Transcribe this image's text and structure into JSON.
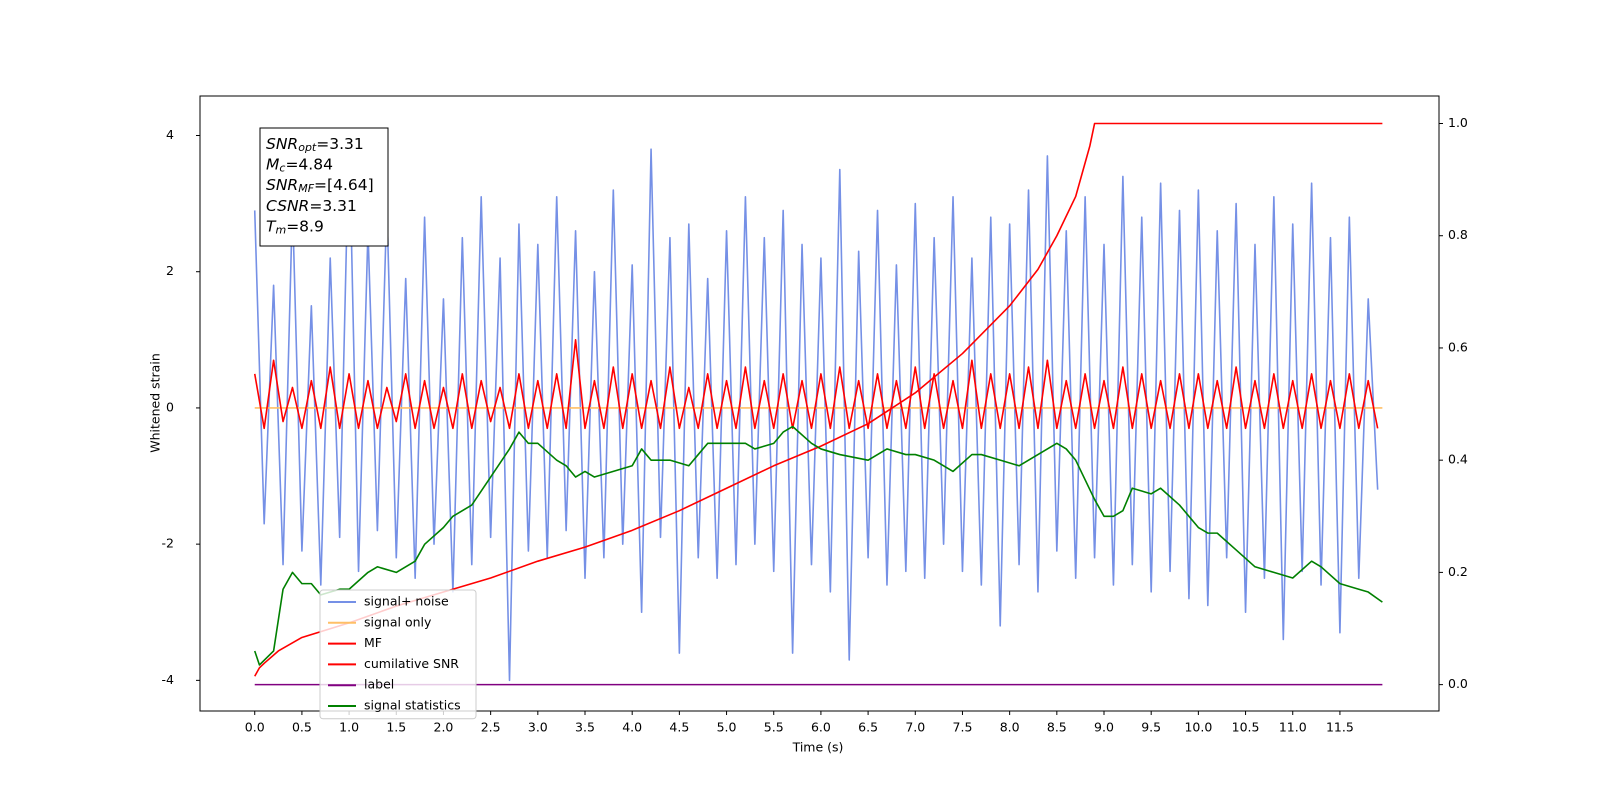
{
  "chart_data": {
    "type": "line",
    "xlabel": "Time (s)",
    "ylabel": "Whitened strain",
    "xlim": [
      -0.58,
      12.55
    ],
    "ylim": [
      -4.45,
      4.58
    ],
    "y2lim": [
      -0.047,
      1.049
    ],
    "xticks": [
      {
        "value": 0,
        "label": "0.0"
      },
      0.5,
      {
        "value": 1,
        "label": "1.0"
      },
      1.5,
      {
        "value": 2,
        "label": "2.0"
      },
      2.5,
      {
        "value": 3,
        "label": "3.0"
      },
      3.5,
      {
        "value": 4,
        "label": "4.0"
      },
      4.5,
      {
        "value": 5,
        "label": "5.0"
      },
      5.5,
      {
        "value": 6,
        "label": "6.0"
      },
      6.5,
      {
        "value": 7,
        "label": "7.0"
      },
      7.5,
      {
        "value": 8,
        "label": "8.0"
      },
      8.5,
      {
        "value": 9,
        "label": "9.0"
      },
      9.5,
      {
        "value": 10,
        "label": "10.0"
      },
      10.5,
      {
        "value": 11,
        "label": "11.0"
      },
      11.5
    ],
    "yticks": [
      -4,
      -2,
      0,
      2,
      4
    ],
    "y2ticks": [
      {
        "value": 0,
        "label": "0.0"
      },
      0.2,
      0.4,
      0.6,
      0.8,
      {
        "value": 1,
        "label": "1.0"
      }
    ],
    "x": [
      0,
      0.1,
      0.2,
      0.3,
      0.4,
      0.5,
      0.6,
      0.7,
      0.8,
      0.9,
      1.0,
      1.1,
      1.2,
      1.3,
      1.4,
      1.5,
      1.6,
      1.7,
      1.8,
      1.9,
      2.0,
      2.1,
      2.2,
      2.3,
      2.4,
      2.5,
      2.6,
      2.7,
      2.8,
      2.9,
      3.0,
      3.1,
      3.2,
      3.3,
      3.4,
      3.5,
      3.6,
      3.7,
      3.8,
      3.9,
      4.0,
      4.1,
      4.2,
      4.3,
      4.4,
      4.5,
      4.6,
      4.7,
      4.8,
      4.9,
      5.0,
      5.1,
      5.2,
      5.3,
      5.4,
      5.5,
      5.6,
      5.7,
      5.8,
      5.9,
      6.0,
      6.1,
      6.2,
      6.3,
      6.4,
      6.5,
      6.6,
      6.7,
      6.8,
      6.9,
      7.0,
      7.1,
      7.2,
      7.3,
      7.4,
      7.5,
      7.6,
      7.7,
      7.8,
      7.9,
      8.0,
      8.1,
      8.2,
      8.3,
      8.4,
      8.5,
      8.6,
      8.7,
      8.8,
      8.9,
      9.0,
      9.1,
      9.2,
      9.3,
      9.4,
      9.5,
      9.6,
      9.7,
      9.8,
      9.9,
      10.0,
      10.1,
      10.2,
      10.3,
      10.4,
      10.5,
      10.6,
      10.7,
      10.8,
      10.9,
      11.0,
      11.1,
      11.2,
      11.3,
      11.4,
      11.5,
      11.6,
      11.7,
      11.8,
      11.9
    ],
    "series": [
      {
        "name": "signal+ noise",
        "color": "#7590e6",
        "values": [
          2.9,
          -1.7,
          1.8,
          -2.3,
          3.0,
          -2.1,
          1.5,
          -2.6,
          2.2,
          -1.9,
          4.1,
          -2.4,
          2.6,
          -1.8,
          3.0,
          -2.2,
          1.9,
          -2.5,
          2.8,
          -2.0,
          1.6,
          -2.7,
          2.5,
          -2.3,
          3.1,
          -1.9,
          2.2,
          -4.0,
          2.7,
          -2.1,
          2.4,
          -2.2,
          3.1,
          -1.8,
          2.6,
          -2.5,
          2.0,
          -2.2,
          3.2,
          -2.0,
          2.1,
          -3.0,
          3.8,
          -1.9,
          2.5,
          -3.6,
          2.7,
          -2.2,
          1.9,
          -2.5,
          2.6,
          -2.3,
          3.1,
          -2.0,
          2.5,
          -2.4,
          2.9,
          -3.6,
          2.4,
          -2.3,
          2.2,
          -2.7,
          3.5,
          -3.7,
          2.3,
          -2.2,
          2.9,
          -2.6,
          2.1,
          -2.4,
          3.0,
          -2.5,
          2.5,
          -2.0,
          3.1,
          -2.4,
          2.2,
          -2.6,
          2.8,
          -3.2,
          2.7,
          -2.3,
          3.2,
          -2.7,
          3.7,
          -2.1,
          2.6,
          -2.5,
          3.1,
          -2.2,
          2.4,
          -2.6,
          3.4,
          -2.3,
          2.8,
          -2.7,
          3.3,
          -2.4,
          2.9,
          -2.8,
          3.2,
          -2.9,
          2.6,
          -2.2,
          3.0,
          -3.0,
          2.4,
          -2.5,
          3.1,
          -3.4,
          2.7,
          -2.4,
          3.3,
          -2.6,
          2.5,
          -3.3,
          2.8,
          -2.5,
          1.6,
          -1.2
        ]
      },
      {
        "name": "signal only",
        "color": "#ffbf66",
        "x": [
          0,
          11.95
        ],
        "values": [
          0,
          0
        ]
      },
      {
        "name": "MF",
        "color": "#ff0000",
        "values": [
          0.5,
          -0.3,
          0.7,
          -0.2,
          0.3,
          -0.3,
          0.4,
          -0.3,
          0.6,
          -0.3,
          0.5,
          -0.3,
          0.4,
          -0.3,
          0.3,
          -0.2,
          0.5,
          -0.3,
          0.4,
          -0.3,
          0.3,
          -0.3,
          0.5,
          -0.3,
          0.4,
          -0.2,
          0.3,
          -0.3,
          0.5,
          -0.3,
          0.4,
          -0.3,
          0.5,
          -0.3,
          1.0,
          -0.3,
          0.4,
          -0.3,
          0.6,
          -0.3,
          0.5,
          -0.3,
          0.4,
          -0.3,
          0.6,
          -0.3,
          0.3,
          -0.3,
          0.5,
          -0.3,
          0.4,
          -0.3,
          0.6,
          -0.3,
          0.4,
          -0.3,
          0.5,
          -0.3,
          0.4,
          -0.3,
          0.5,
          -0.3,
          0.6,
          -0.3,
          0.4,
          -0.3,
          0.5,
          -0.3,
          0.4,
          -0.3,
          0.6,
          -0.3,
          0.5,
          -0.3,
          0.4,
          -0.3,
          0.7,
          -0.3,
          0.5,
          -0.3,
          0.5,
          -0.3,
          0.6,
          -0.3,
          0.7,
          -0.3,
          0.4,
          -0.3,
          0.5,
          -0.3,
          0.4,
          -0.3,
          0.6,
          -0.3,
          0.5,
          -0.3,
          0.4,
          -0.3,
          0.5,
          -0.3,
          0.5,
          -0.3,
          0.4,
          -0.3,
          0.6,
          -0.3,
          0.4,
          -0.3,
          0.5,
          -0.3,
          0.4,
          -0.3,
          0.5,
          -0.3,
          0.4,
          -0.3,
          0.5,
          -0.3,
          0.4,
          -0.3
        ]
      },
      {
        "name": "cumilative SNR",
        "color": "#ff0000",
        "axis": "y2",
        "x": [
          0,
          0.05,
          0.1,
          0.25,
          0.5,
          1.0,
          1.5,
          2.0,
          2.5,
          3.0,
          3.5,
          4.0,
          4.5,
          5.0,
          5.5,
          6.0,
          6.5,
          7.0,
          7.5,
          8.0,
          8.3,
          8.5,
          8.7,
          8.8,
          8.85,
          8.9,
          11.95
        ],
        "values": [
          0.015,
          0.03,
          0.038,
          0.06,
          0.084,
          0.11,
          0.14,
          0.165,
          0.19,
          0.22,
          0.245,
          0.275,
          0.31,
          0.35,
          0.39,
          0.425,
          0.465,
          0.52,
          0.59,
          0.675,
          0.74,
          0.8,
          0.87,
          0.93,
          0.96,
          1.0,
          1.0
        ]
      },
      {
        "name": "label",
        "color": "#800080",
        "axis": "y2",
        "x": [
          0,
          11.95
        ],
        "values": [
          0,
          0
        ]
      },
      {
        "name": "signal statistics",
        "color": "#008000",
        "axis": "y2",
        "x": [
          0,
          0.05,
          0.2,
          0.3,
          0.4,
          0.5,
          0.6,
          0.7,
          0.9,
          1.0,
          1.2,
          1.3,
          1.5,
          1.7,
          1.8,
          2.0,
          2.1,
          2.3,
          2.5,
          2.7,
          2.8,
          2.9,
          3.0,
          3.2,
          3.3,
          3.4,
          3.5,
          3.6,
          3.8,
          4.0,
          4.1,
          4.2,
          4.4,
          4.6,
          4.7,
          4.8,
          5.0,
          5.2,
          5.3,
          5.5,
          5.6,
          5.7,
          5.9,
          6.0,
          6.2,
          6.5,
          6.7,
          6.9,
          7.0,
          7.2,
          7.4,
          7.6,
          7.7,
          7.9,
          8.1,
          8.3,
          8.5,
          8.6,
          8.7,
          8.9,
          9.0,
          9.1,
          9.2,
          9.3,
          9.5,
          9.6,
          9.8,
          10.0,
          10.1,
          10.2,
          10.4,
          10.6,
          10.8,
          11.0,
          11.2,
          11.3,
          11.5,
          11.7,
          11.8,
          11.95
        ],
        "values": [
          0.06,
          0.035,
          0.06,
          0.17,
          0.2,
          0.18,
          0.18,
          0.16,
          0.17,
          0.17,
          0.2,
          0.21,
          0.2,
          0.22,
          0.25,
          0.28,
          0.3,
          0.32,
          0.37,
          0.42,
          0.45,
          0.43,
          0.43,
          0.4,
          0.39,
          0.37,
          0.38,
          0.37,
          0.38,
          0.39,
          0.42,
          0.4,
          0.4,
          0.39,
          0.41,
          0.43,
          0.43,
          0.43,
          0.42,
          0.43,
          0.45,
          0.46,
          0.43,
          0.42,
          0.41,
          0.4,
          0.42,
          0.41,
          0.41,
          0.4,
          0.38,
          0.41,
          0.41,
          0.4,
          0.39,
          0.41,
          0.43,
          0.42,
          0.4,
          0.33,
          0.3,
          0.3,
          0.31,
          0.35,
          0.34,
          0.35,
          0.32,
          0.28,
          0.27,
          0.27,
          0.24,
          0.21,
          0.2,
          0.19,
          0.22,
          0.21,
          0.18,
          0.17,
          0.165,
          0.147
        ]
      }
    ],
    "annotations": [
      {
        "symbol": "SNR",
        "subscript": "opt",
        "text": "=3.31"
      },
      {
        "symbol": "M",
        "subscript": "c",
        "text": "=4.84"
      },
      {
        "symbol": "SNR",
        "subscript": "MF",
        "text": "=[4.64]"
      },
      {
        "symbol": "CSNR",
        "text": "=3.31"
      },
      {
        "symbol": "T",
        "subscript": "m",
        "text": "=8.9"
      }
    ]
  }
}
